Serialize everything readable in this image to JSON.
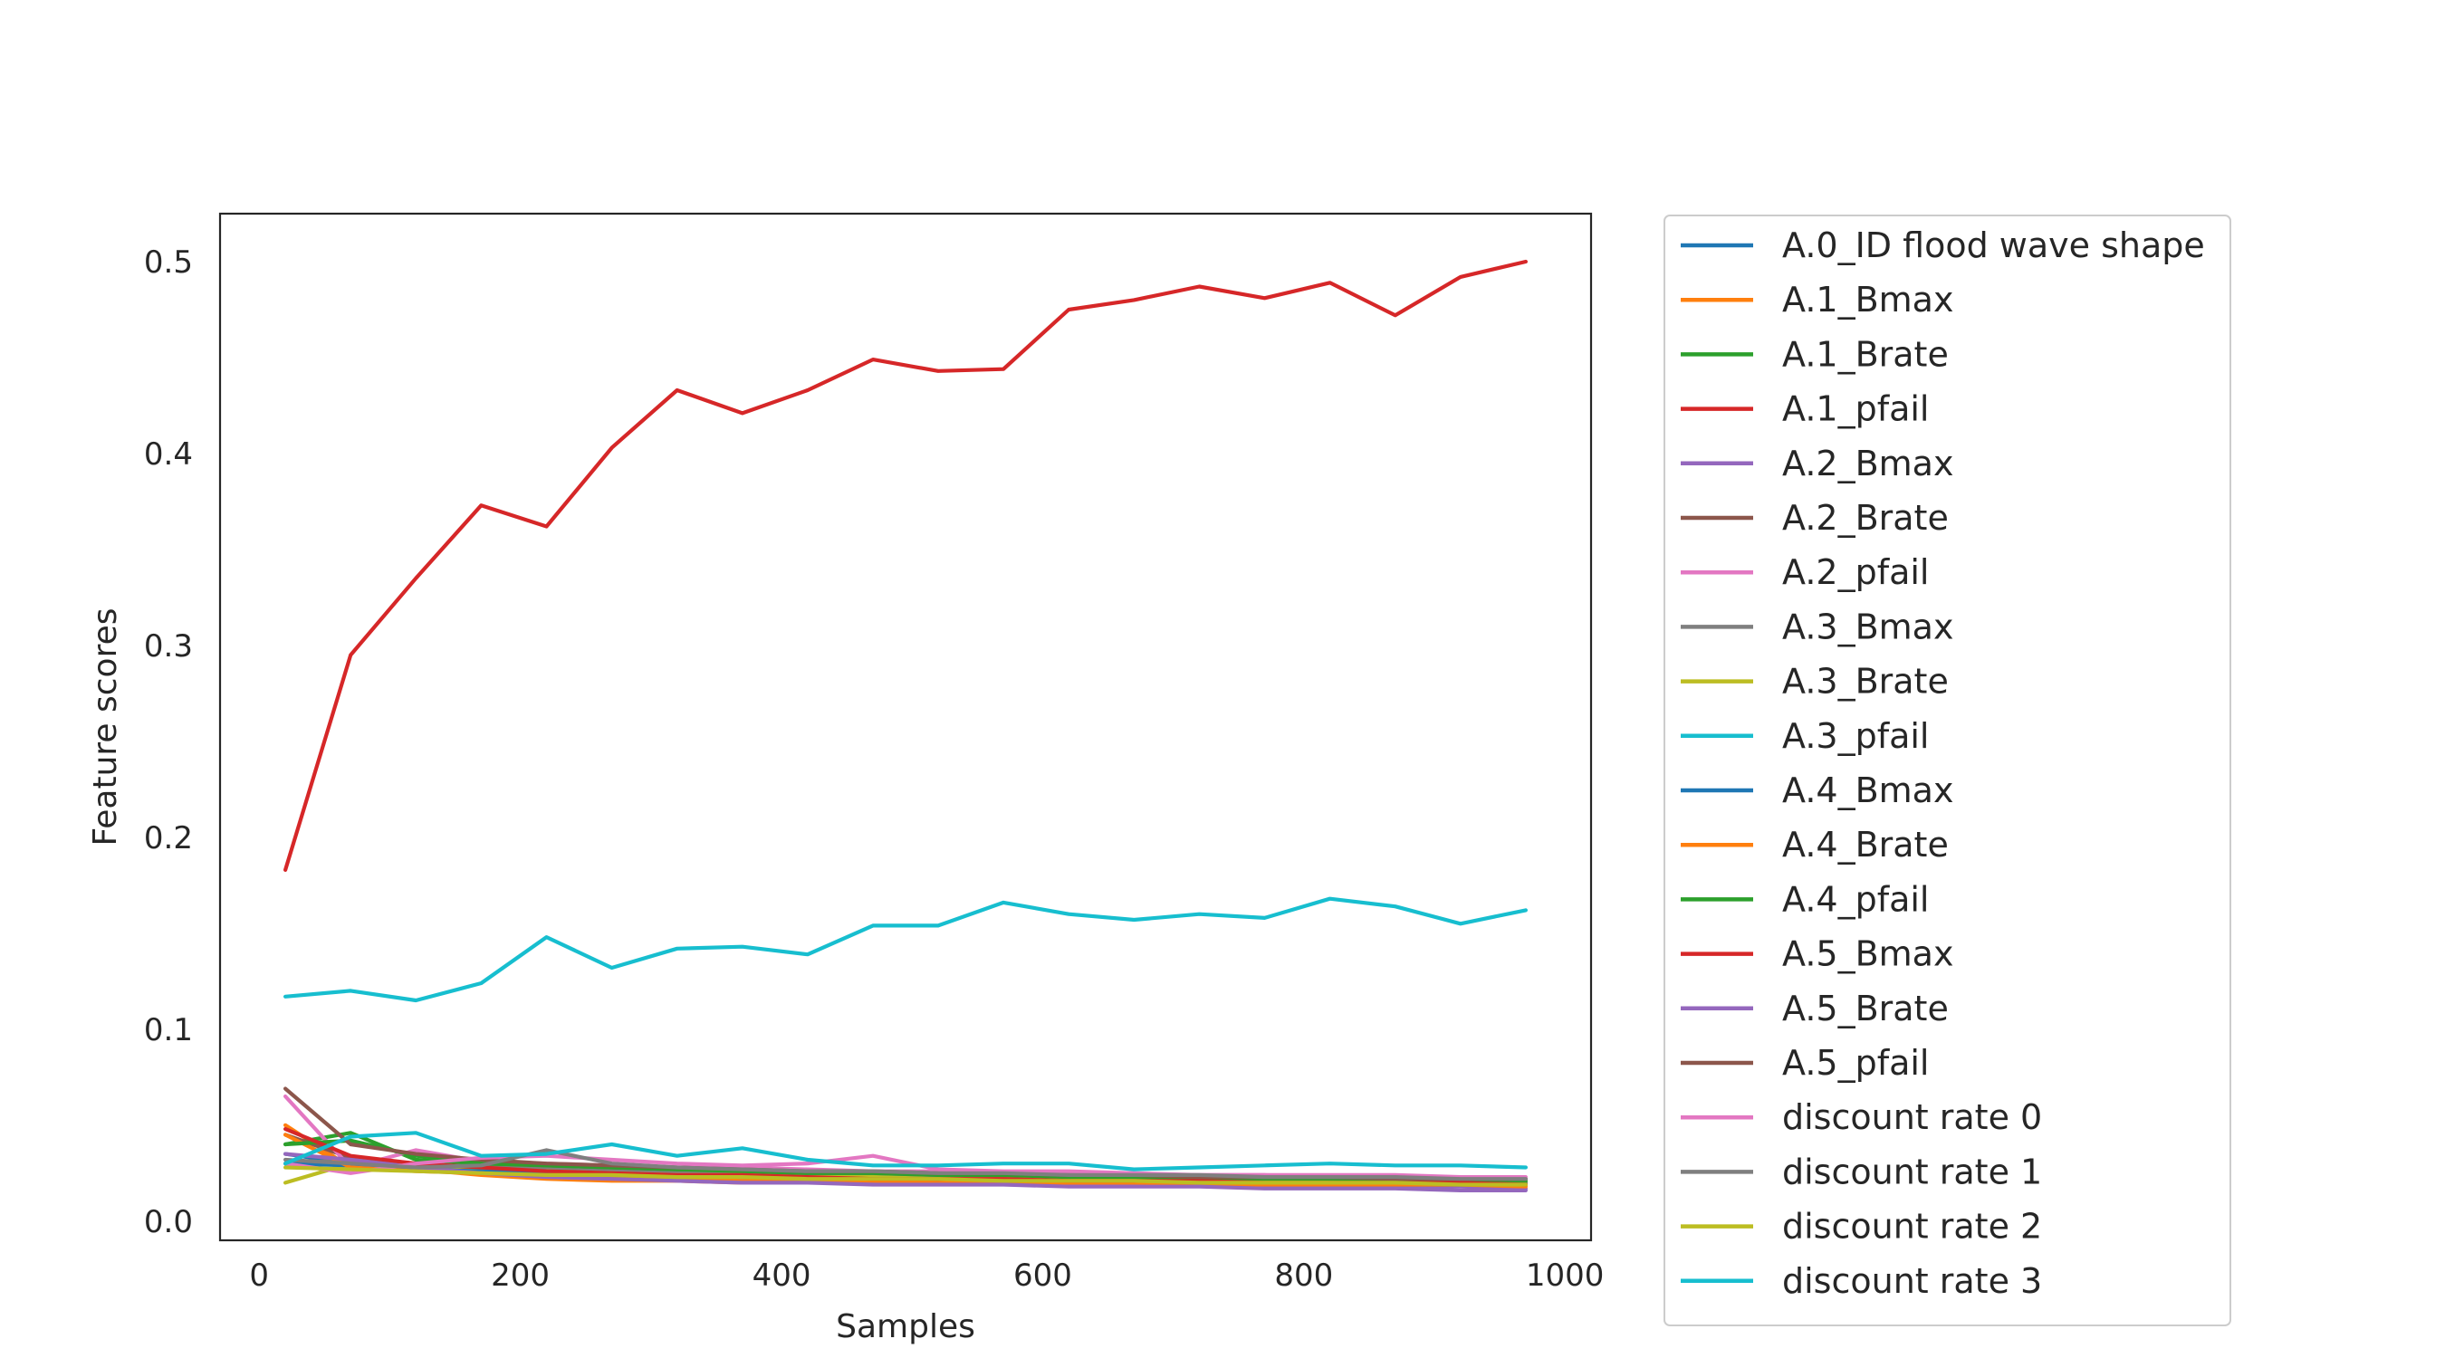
{
  "chart_data": {
    "type": "line",
    "xlabel": "Samples",
    "ylabel": "Feature scores",
    "xlim": [
      -30,
      1020
    ],
    "ylim": [
      -0.01,
      0.525
    ],
    "xticks": [
      0,
      200,
      400,
      600,
      800,
      1000
    ],
    "yticks": [
      0.0,
      0.1,
      0.2,
      0.3,
      0.4,
      0.5
    ],
    "ytick_labels": [
      "0.0",
      "0.1",
      "0.2",
      "0.3",
      "0.4",
      "0.5"
    ],
    "grid": false,
    "legend_position": "outside-right",
    "x": [
      20,
      70,
      120,
      170,
      220,
      270,
      320,
      370,
      420,
      470,
      520,
      570,
      620,
      670,
      720,
      770,
      820,
      870,
      920,
      970
    ],
    "series": [
      {
        "name": "A.0_ID flood wave shape",
        "color": "#1f77b4",
        "values": [
          0.035,
          0.03,
          0.028,
          0.027,
          0.026,
          0.025,
          0.024,
          0.024,
          0.023,
          0.023,
          0.022,
          0.022,
          0.022,
          0.021,
          0.021,
          0.021,
          0.02,
          0.02,
          0.02,
          0.02
        ]
      },
      {
        "name": "A.1_Bmax",
        "color": "#ff7f0e",
        "values": [
          0.05,
          0.028,
          0.027,
          0.024,
          0.022,
          0.021,
          0.021,
          0.02,
          0.02,
          0.02,
          0.02,
          0.02,
          0.019,
          0.019,
          0.019,
          0.019,
          0.019,
          0.019,
          0.019,
          0.019
        ]
      },
      {
        "name": "A.1_Brate",
        "color": "#2ca02c",
        "values": [
          0.04,
          0.046,
          0.032,
          0.03,
          0.028,
          0.027,
          0.026,
          0.025,
          0.024,
          0.024,
          0.023,
          0.023,
          0.022,
          0.022,
          0.022,
          0.021,
          0.021,
          0.021,
          0.021,
          0.02
        ]
      },
      {
        "name": "A.1_pfail",
        "color": "#d62728",
        "values": [
          0.183,
          0.295,
          0.335,
          0.373,
          0.362,
          0.403,
          0.433,
          0.421,
          0.433,
          0.449,
          0.443,
          0.444,
          0.475,
          0.48,
          0.487,
          0.481,
          0.489,
          0.472,
          0.492,
          0.5
        ]
      },
      {
        "name": "A.2_Bmax",
        "color": "#9467bd",
        "values": [
          0.03,
          0.029,
          0.027,
          0.025,
          0.024,
          0.023,
          0.022,
          0.021,
          0.021,
          0.02,
          0.02,
          0.02,
          0.019,
          0.019,
          0.019,
          0.018,
          0.018,
          0.018,
          0.018,
          0.017
        ]
      },
      {
        "name": "A.2_Brate",
        "color": "#8c564b",
        "values": [
          0.045,
          0.033,
          0.03,
          0.028,
          0.027,
          0.026,
          0.025,
          0.024,
          0.024,
          0.023,
          0.023,
          0.022,
          0.022,
          0.022,
          0.021,
          0.021,
          0.021,
          0.02,
          0.02,
          0.02
        ]
      },
      {
        "name": "A.2_pfail",
        "color": "#e377c2",
        "values": [
          0.065,
          0.028,
          0.037,
          0.031,
          0.03,
          0.029,
          0.028,
          0.028,
          0.027,
          0.026,
          0.026,
          0.025,
          0.025,
          0.024,
          0.024,
          0.024,
          0.023,
          0.023,
          0.023,
          0.022
        ]
      },
      {
        "name": "A.3_Bmax",
        "color": "#7f7f7f",
        "values": [
          0.03,
          0.032,
          0.029,
          0.028,
          0.027,
          0.026,
          0.025,
          0.025,
          0.024,
          0.024,
          0.023,
          0.023,
          0.022,
          0.022,
          0.022,
          0.021,
          0.021,
          0.021,
          0.02,
          0.02
        ]
      },
      {
        "name": "A.3_Brate",
        "color": "#bcbd22",
        "values": [
          0.02,
          0.03,
          0.028,
          0.027,
          0.026,
          0.025,
          0.024,
          0.024,
          0.023,
          0.023,
          0.022,
          0.022,
          0.022,
          0.021,
          0.021,
          0.021,
          0.02,
          0.02,
          0.02,
          0.019
        ]
      },
      {
        "name": "A.3_pfail",
        "color": "#17becf",
        "values": [
          0.117,
          0.12,
          0.115,
          0.124,
          0.148,
          0.132,
          0.142,
          0.143,
          0.139,
          0.154,
          0.154,
          0.166,
          0.16,
          0.157,
          0.16,
          0.158,
          0.168,
          0.164,
          0.155,
          0.162
        ]
      },
      {
        "name": "A.4_Bmax",
        "color": "#1f77b4",
        "values": [
          0.03,
          0.029,
          0.027,
          0.026,
          0.025,
          0.024,
          0.023,
          0.023,
          0.022,
          0.022,
          0.021,
          0.021,
          0.021,
          0.02,
          0.02,
          0.02,
          0.019,
          0.019,
          0.019,
          0.019
        ]
      },
      {
        "name": "A.4_Brate",
        "color": "#ff7f0e",
        "values": [
          0.045,
          0.028,
          0.026,
          0.025,
          0.023,
          0.022,
          0.022,
          0.021,
          0.021,
          0.021,
          0.02,
          0.02,
          0.02,
          0.02,
          0.019,
          0.019,
          0.019,
          0.019,
          0.019,
          0.018
        ]
      },
      {
        "name": "A.4_pfail",
        "color": "#2ca02c",
        "values": [
          0.04,
          0.042,
          0.034,
          0.031,
          0.029,
          0.028,
          0.027,
          0.026,
          0.025,
          0.025,
          0.024,
          0.024,
          0.023,
          0.023,
          0.022,
          0.022,
          0.022,
          0.021,
          0.021,
          0.021
        ]
      },
      {
        "name": "A.5_Bmax",
        "color": "#d62728",
        "values": [
          0.048,
          0.034,
          0.03,
          0.028,
          0.026,
          0.025,
          0.024,
          0.024,
          0.023,
          0.022,
          0.022,
          0.022,
          0.021,
          0.021,
          0.021,
          0.02,
          0.02,
          0.02,
          0.02,
          0.019
        ]
      },
      {
        "name": "A.5_Brate",
        "color": "#9467bd",
        "values": [
          0.035,
          0.032,
          0.028,
          0.025,
          0.023,
          0.022,
          0.021,
          0.02,
          0.02,
          0.019,
          0.019,
          0.019,
          0.018,
          0.018,
          0.018,
          0.017,
          0.017,
          0.017,
          0.016,
          0.016
        ]
      },
      {
        "name": "A.5_pfail",
        "color": "#8c564b",
        "values": [
          0.069,
          0.04,
          0.035,
          0.032,
          0.03,
          0.029,
          0.028,
          0.027,
          0.026,
          0.026,
          0.025,
          0.025,
          0.024,
          0.024,
          0.023,
          0.023,
          0.023,
          0.022,
          0.022,
          0.022
        ]
      },
      {
        "name": "discount rate 0",
        "color": "#e377c2",
        "values": [
          0.03,
          0.025,
          0.03,
          0.033,
          0.034,
          0.032,
          0.03,
          0.029,
          0.03,
          0.034,
          0.027,
          0.026,
          0.026,
          0.025,
          0.024,
          0.024,
          0.024,
          0.024,
          0.023,
          0.023
        ]
      },
      {
        "name": "discount rate 1",
        "color": "#7f7f7f",
        "values": [
          0.032,
          0.03,
          0.028,
          0.029,
          0.037,
          0.03,
          0.028,
          0.027,
          0.026,
          0.026,
          0.025,
          0.025,
          0.024,
          0.024,
          0.024,
          0.023,
          0.023,
          0.023,
          0.022,
          0.022
        ]
      },
      {
        "name": "discount rate 2",
        "color": "#bcbd22",
        "values": [
          0.028,
          0.027,
          0.026,
          0.025,
          0.024,
          0.024,
          0.023,
          0.023,
          0.022,
          0.022,
          0.022,
          0.021,
          0.021,
          0.021,
          0.02,
          0.02,
          0.02,
          0.02,
          0.019,
          0.019
        ]
      },
      {
        "name": "discount rate 3",
        "color": "#17becf",
        "values": [
          0.03,
          0.044,
          0.046,
          0.034,
          0.035,
          0.04,
          0.034,
          0.038,
          0.032,
          0.029,
          0.029,
          0.03,
          0.03,
          0.027,
          0.028,
          0.029,
          0.03,
          0.029,
          0.029,
          0.028
        ]
      }
    ]
  }
}
